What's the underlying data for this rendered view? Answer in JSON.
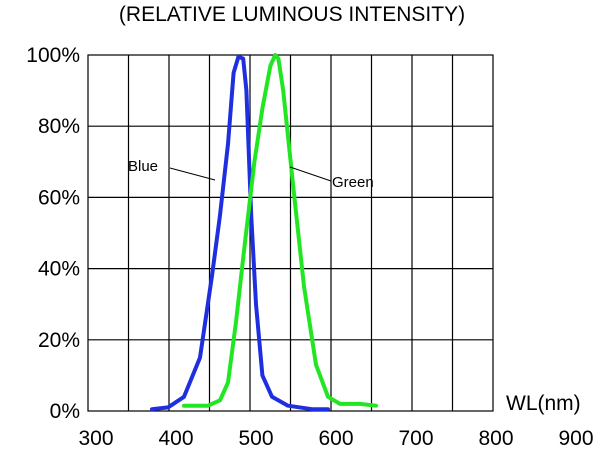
{
  "chart_data": {
    "type": "line",
    "title": "(RELATIVE LUMINOUS INTENSITY)",
    "xlabel": "WL(nm)",
    "ylabel": "",
    "xlim": [
      300,
      900
    ],
    "ylim": [
      0,
      100
    ],
    "x_ticks": [
      "300",
      "400",
      "500",
      "600",
      "700",
      "800",
      "900"
    ],
    "y_ticks": [
      "0%",
      "20%",
      "40%",
      "60%",
      "80%",
      "100%"
    ],
    "grid": true,
    "series": [
      {
        "name": "Blue",
        "color": "#1f2fe0",
        "points": [
          [
            370,
            0.5
          ],
          [
            390,
            1
          ],
          [
            410,
            4
          ],
          [
            430,
            15
          ],
          [
            445,
            38
          ],
          [
            455,
            55
          ],
          [
            465,
            75
          ],
          [
            472,
            95
          ],
          [
            478,
            99.5
          ],
          [
            484,
            99
          ],
          [
            488,
            90
          ],
          [
            494,
            55
          ],
          [
            500,
            30
          ],
          [
            508,
            10
          ],
          [
            520,
            4
          ],
          [
            540,
            1.5
          ],
          [
            570,
            0.5
          ],
          [
            590,
            0.5
          ]
        ]
      },
      {
        "name": "Green",
        "color": "#22e622",
        "points": [
          [
            410,
            1.5
          ],
          [
            440,
            1.5
          ],
          [
            455,
            3
          ],
          [
            465,
            8
          ],
          [
            475,
            25
          ],
          [
            485,
            45
          ],
          [
            498,
            70
          ],
          [
            508,
            85
          ],
          [
            518,
            97
          ],
          [
            524,
            100
          ],
          [
            528,
            99
          ],
          [
            534,
            90
          ],
          [
            548,
            60
          ],
          [
            560,
            35
          ],
          [
            575,
            13
          ],
          [
            590,
            4
          ],
          [
            605,
            2
          ],
          [
            630,
            2
          ],
          [
            650,
            1.5
          ]
        ]
      }
    ],
    "annotations": [
      {
        "text": "Blue",
        "series": "Blue"
      },
      {
        "text": "Green",
        "series": "Green"
      }
    ]
  }
}
